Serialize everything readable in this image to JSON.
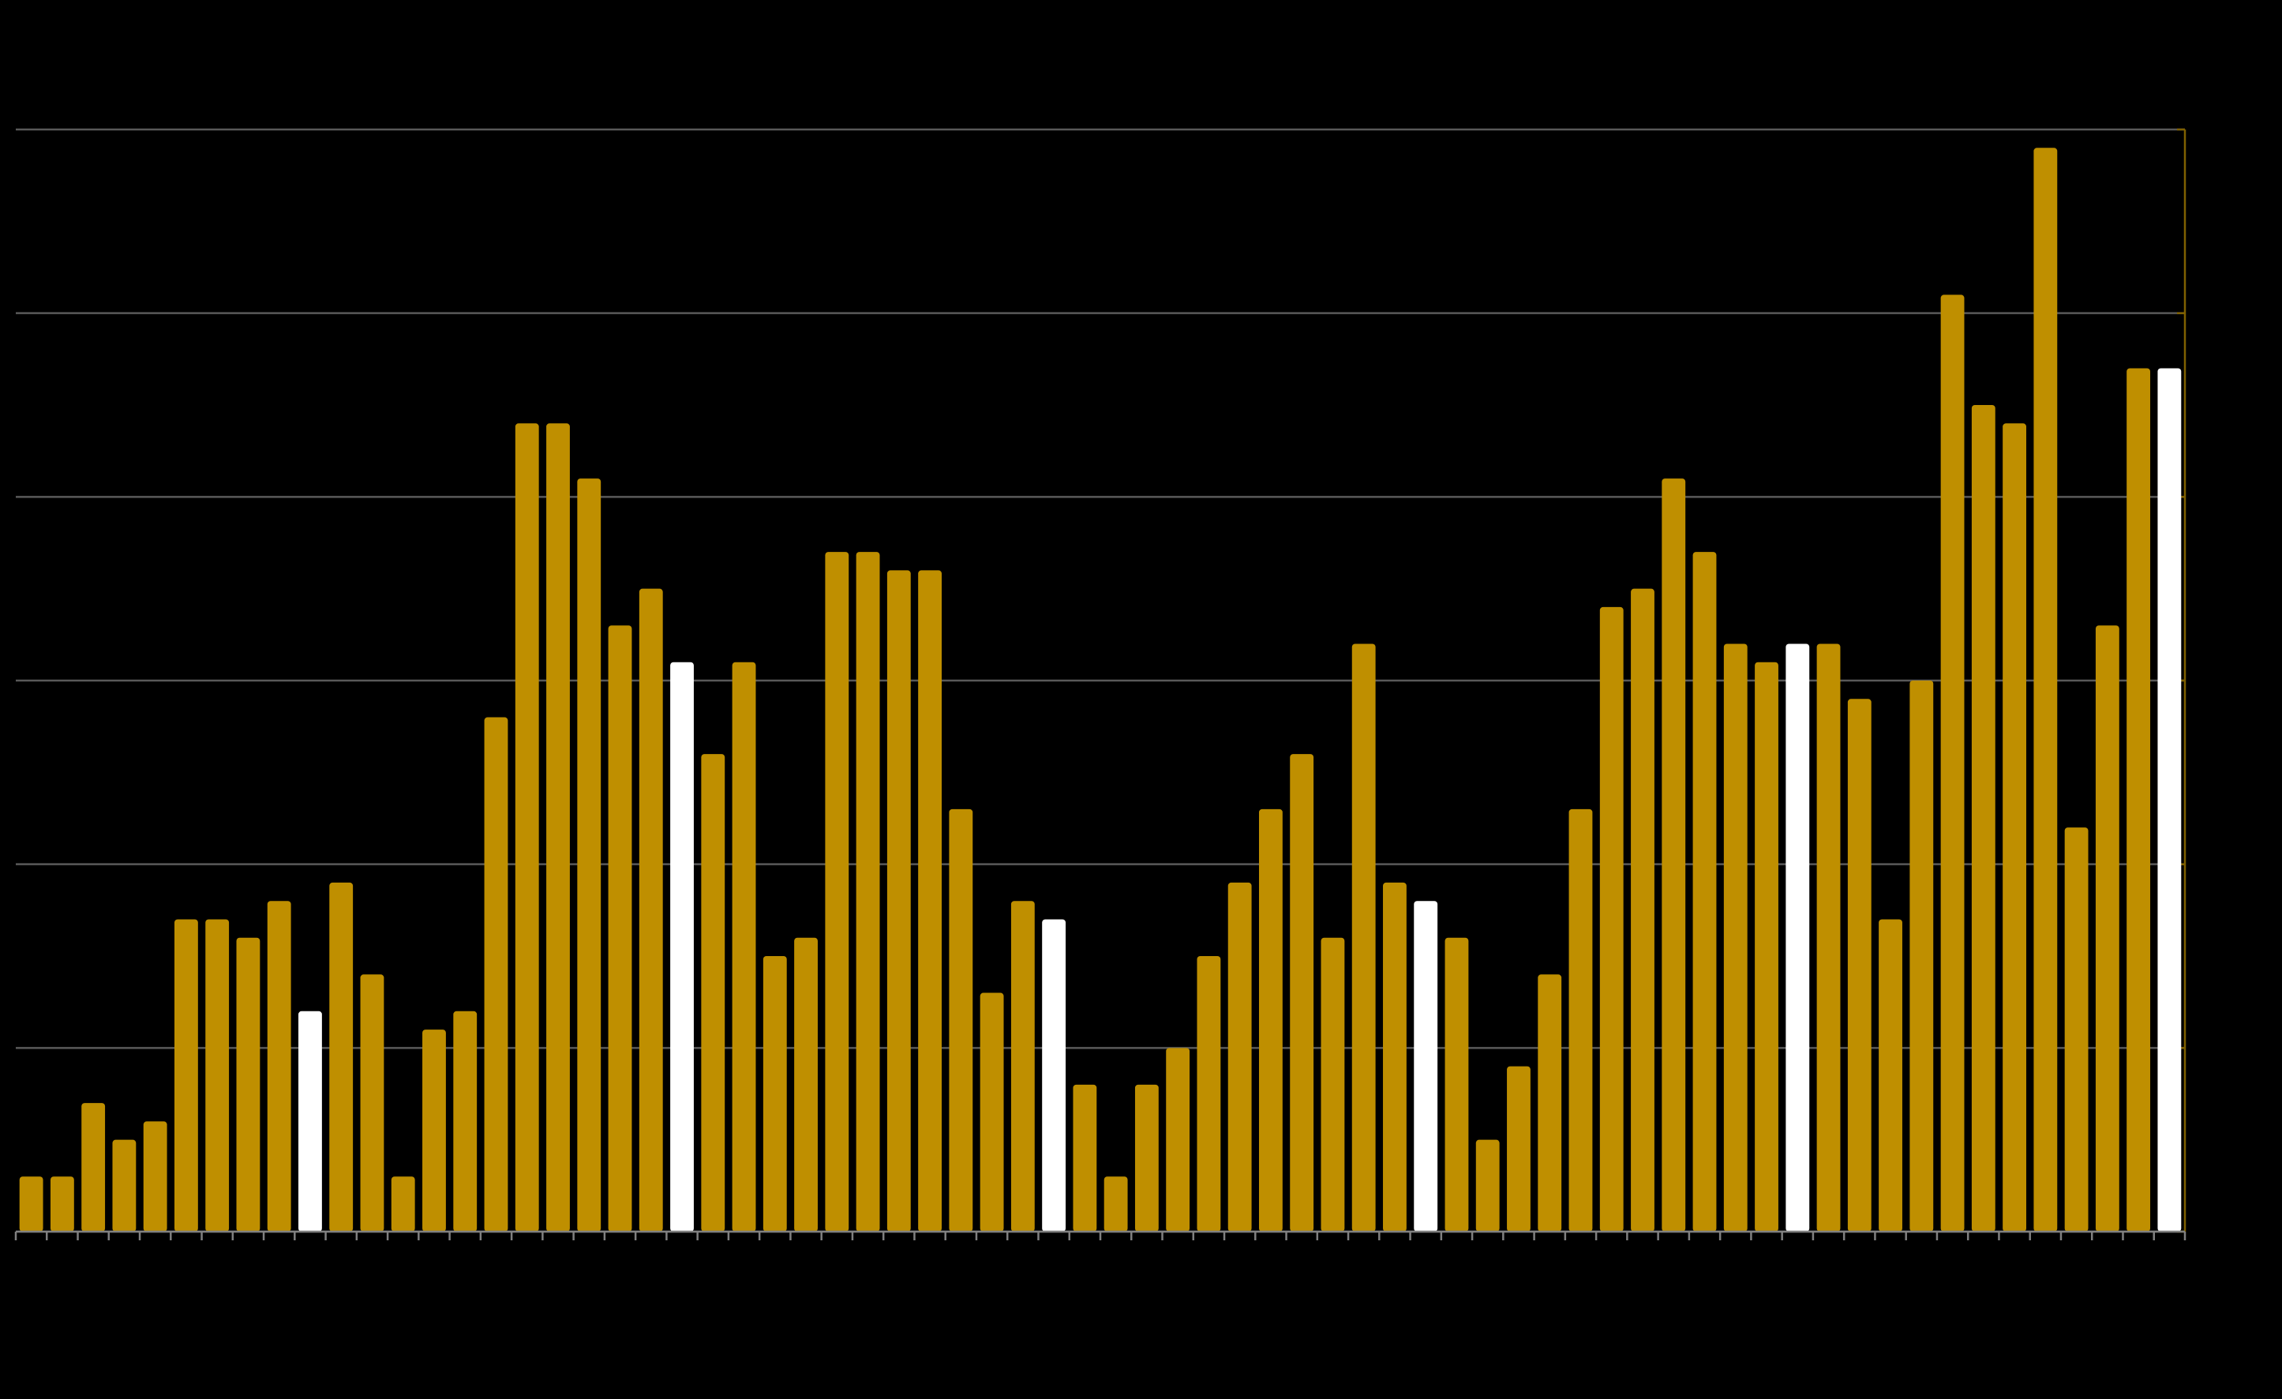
{
  "chart_data": {
    "type": "bar",
    "categories": [
      null,
      null,
      null,
      null,
      null,
      null,
      null,
      null,
      null,
      null,
      null,
      null,
      null,
      null,
      null,
      null,
      null,
      null,
      null,
      null,
      null,
      null,
      null,
      null,
      null,
      null,
      null,
      null,
      null,
      null,
      null,
      null,
      null,
      null,
      null,
      null,
      null,
      null,
      null,
      null,
      null,
      null,
      null,
      null,
      null,
      null,
      null,
      null,
      null,
      null,
      null,
      null,
      null,
      null,
      null,
      null,
      null,
      null,
      null,
      null,
      null,
      null,
      null,
      null,
      null,
      null,
      null,
      null,
      null,
      null
    ],
    "values": [
      0.3,
      0.3,
      0.7,
      0.5,
      0.6,
      1.7,
      1.7,
      1.6,
      1.8,
      1.2,
      1.9,
      1.4,
      0.3,
      1.1,
      1.2,
      2.8,
      4.4,
      4.4,
      4.1,
      3.3,
      3.5,
      3.1,
      2.6,
      3.1,
      1.5,
      1.6,
      3.7,
      3.7,
      3.6,
      3.6,
      2.3,
      1.3,
      1.8,
      1.7,
      0.8,
      0.3,
      0.8,
      1.0,
      1.5,
      1.9,
      2.3,
      2.6,
      1.6,
      3.2,
      1.9,
      1.8,
      1.6,
      0.5,
      0.9,
      1.4,
      2.3,
      3.4,
      3.5,
      4.1,
      3.7,
      3.2,
      3.1,
      3.2,
      3.2,
      2.9,
      1.7,
      3.0,
      5.1,
      4.5,
      4.4,
      5.9,
      2.2,
      3.3,
      4.7,
      4.7
    ],
    "colors": [
      "#bf8f00",
      "#bf8f00",
      "#bf8f00",
      "#bf8f00",
      "#bf8f00",
      "#bf8f00",
      "#bf8f00",
      "#bf8f00",
      "#bf8f00",
      "#ffffff",
      "#bf8f00",
      "#bf8f00",
      "#bf8f00",
      "#bf8f00",
      "#bf8f00",
      "#bf8f00",
      "#bf8f00",
      "#bf8f00",
      "#bf8f00",
      "#bf8f00",
      "#bf8f00",
      "#ffffff",
      "#bf8f00",
      "#bf8f00",
      "#bf8f00",
      "#bf8f00",
      "#bf8f00",
      "#bf8f00",
      "#bf8f00",
      "#bf8f00",
      "#bf8f00",
      "#bf8f00",
      "#bf8f00",
      "#ffffff",
      "#bf8f00",
      "#bf8f00",
      "#bf8f00",
      "#bf8f00",
      "#bf8f00",
      "#bf8f00",
      "#bf8f00",
      "#bf8f00",
      "#bf8f00",
      "#bf8f00",
      "#bf8f00",
      "#ffffff",
      "#bf8f00",
      "#bf8f00",
      "#bf8f00",
      "#bf8f00",
      "#bf8f00",
      "#bf8f00",
      "#bf8f00",
      "#bf8f00",
      "#bf8f00",
      "#bf8f00",
      "#bf8f00",
      "#ffffff",
      "#bf8f00",
      "#bf8f00",
      "#bf8f00",
      "#bf8f00",
      "#bf8f00",
      "#bf8f00",
      "#bf8f00",
      "#bf8f00",
      "#bf8f00",
      "#bf8f00",
      "#bf8f00",
      "#ffffff"
    ],
    "ylim": [
      0,
      6
    ],
    "yticks": [
      0,
      1,
      2,
      3,
      4,
      5,
      6
    ],
    "grid": true
  }
}
